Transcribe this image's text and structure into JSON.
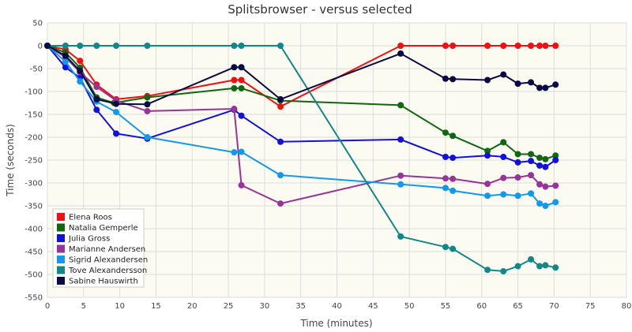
{
  "chart_data": {
    "type": "line",
    "title": "Splitsbrowser - versus selected",
    "xlabel": "Time (minutes)",
    "ylabel": "Time (seconds)",
    "xlim": [
      0,
      80
    ],
    "ylim": [
      -550,
      50
    ],
    "x_ticks": [
      0,
      5,
      10,
      15,
      20,
      25,
      30,
      35,
      40,
      45,
      50,
      55,
      60,
      65,
      70,
      75,
      80
    ],
    "y_ticks": [
      50,
      0,
      -50,
      -100,
      -150,
      -200,
      -250,
      -300,
      -350,
      -400,
      -450,
      -500,
      -550
    ],
    "grid": true,
    "background": "#fcfbf2",
    "legend_position": "bottom-left",
    "series": [
      {
        "name": "Elena Roos",
        "color": "#ee1111",
        "points": [
          [
            0,
            0
          ],
          [
            2.5,
            -8
          ],
          [
            4.5,
            -33
          ],
          [
            6.8,
            -85
          ],
          [
            9.5,
            -117
          ],
          [
            13.8,
            -110
          ],
          [
            25.8,
            -75
          ],
          [
            26.8,
            -75
          ],
          [
            32.2,
            -133
          ],
          [
            48.8,
            0
          ],
          [
            55,
            0
          ],
          [
            56,
            0
          ],
          [
            60.8,
            0
          ],
          [
            63,
            0
          ],
          [
            65,
            0
          ],
          [
            66.8,
            0
          ],
          [
            68,
            0
          ],
          [
            68.8,
            0
          ],
          [
            70.2,
            0
          ]
        ]
      },
      {
        "name": "Natalia Gemperle",
        "color": "#116611",
        "points": [
          [
            0,
            0
          ],
          [
            2.5,
            -15
          ],
          [
            4.5,
            -48
          ],
          [
            6.8,
            -113
          ],
          [
            9.2,
            -125
          ],
          [
            13.8,
            -113
          ],
          [
            25.8,
            -93
          ],
          [
            26.8,
            -93
          ],
          [
            32.2,
            -120
          ],
          [
            48.8,
            -130
          ],
          [
            55,
            -190
          ],
          [
            56,
            -197
          ],
          [
            60.8,
            -230
          ],
          [
            63,
            -211
          ],
          [
            65,
            -237
          ],
          [
            66.8,
            -237
          ],
          [
            68,
            -245
          ],
          [
            68.8,
            -248
          ],
          [
            70.2,
            -240
          ]
        ]
      },
      {
        "name": "Julia Gross",
        "color": "#1111dd",
        "points": [
          [
            0,
            0
          ],
          [
            2.5,
            -47
          ],
          [
            4.5,
            -70
          ],
          [
            6.8,
            -140
          ],
          [
            9.5,
            -192
          ],
          [
            13.8,
            -203
          ],
          [
            25.8,
            -140
          ],
          [
            26.8,
            -153
          ],
          [
            32.2,
            -210
          ],
          [
            48.8,
            -205
          ],
          [
            55,
            -243
          ],
          [
            56,
            -245
          ],
          [
            60.8,
            -240
          ],
          [
            63,
            -243
          ],
          [
            65,
            -255
          ],
          [
            66.8,
            -252
          ],
          [
            68,
            -262
          ],
          [
            68.8,
            -265
          ],
          [
            70.2,
            -250
          ]
        ]
      },
      {
        "name": "Marianne Andersen",
        "color": "#993399",
        "points": [
          [
            0,
            0
          ],
          [
            2.5,
            -25
          ],
          [
            4.5,
            -58
          ],
          [
            6.8,
            -90
          ],
          [
            9.5,
            -120
          ],
          [
            13.8,
            -143
          ],
          [
            25.8,
            -138
          ],
          [
            26.8,
            -305
          ],
          [
            32.2,
            -345
          ],
          [
            48.8,
            -284
          ],
          [
            55,
            -290
          ],
          [
            56,
            -291
          ],
          [
            60.8,
            -302
          ],
          [
            63,
            -289
          ],
          [
            65,
            -288
          ],
          [
            66.8,
            -283
          ],
          [
            68,
            -303
          ],
          [
            68.8,
            -308
          ],
          [
            70.2,
            -306
          ]
        ]
      },
      {
        "name": "Sigrid Alexandersen",
        "color": "#1199ee",
        "points": [
          [
            0,
            0
          ],
          [
            2.5,
            -35
          ],
          [
            4.5,
            -78
          ],
          [
            6.8,
            -122
          ],
          [
            9.5,
            -145
          ],
          [
            13.8,
            -200
          ],
          [
            25.8,
            -233
          ],
          [
            26.8,
            -232
          ],
          [
            32.2,
            -283
          ],
          [
            48.8,
            -303
          ],
          [
            55,
            -311
          ],
          [
            56,
            -317
          ],
          [
            60.8,
            -328
          ],
          [
            63,
            -325
          ],
          [
            65,
            -328
          ],
          [
            66.8,
            -323
          ],
          [
            68,
            -345
          ],
          [
            68.8,
            -350
          ],
          [
            70.2,
            -342
          ]
        ]
      },
      {
        "name": "Tove Alexandersson",
        "color": "#118888",
        "points": [
          [
            0,
            0
          ],
          [
            2.5,
            0
          ],
          [
            4.5,
            0
          ],
          [
            6.8,
            0
          ],
          [
            9.5,
            0
          ],
          [
            13.8,
            0
          ],
          [
            25.8,
            0
          ],
          [
            26.8,
            0
          ],
          [
            32.2,
            0
          ],
          [
            48.8,
            -417
          ],
          [
            55,
            -440
          ],
          [
            56,
            -444
          ],
          [
            60.8,
            -490
          ],
          [
            63,
            -493
          ],
          [
            65,
            -482
          ],
          [
            66.8,
            -467
          ],
          [
            68,
            -482
          ],
          [
            68.8,
            -480
          ],
          [
            70.2,
            -485
          ]
        ]
      },
      {
        "name": "Sabine Hauswirth",
        "color": "#0a0a44",
        "points": [
          [
            0,
            0
          ],
          [
            2.5,
            -22
          ],
          [
            4.5,
            -55
          ],
          [
            6.8,
            -117
          ],
          [
            9.5,
            -127
          ],
          [
            13.8,
            -128
          ],
          [
            25.8,
            -47
          ],
          [
            26.8,
            -47
          ],
          [
            32.2,
            -117
          ],
          [
            48.8,
            -17
          ],
          [
            55,
            -72
          ],
          [
            56,
            -73
          ],
          [
            60.8,
            -75
          ],
          [
            63,
            -63
          ],
          [
            65,
            -83
          ],
          [
            66.8,
            -80
          ],
          [
            68,
            -92
          ],
          [
            68.8,
            -92
          ],
          [
            70.2,
            -85
          ]
        ]
      }
    ]
  }
}
